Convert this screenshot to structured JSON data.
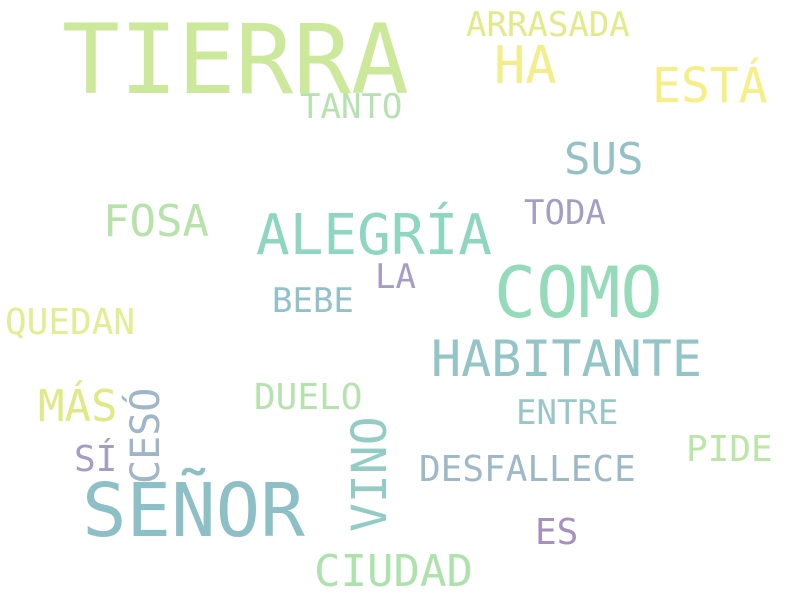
{
  "words": [
    {
      "text": "TIERRA",
      "color": "#cce89a"
    },
    {
      "text": "ARRASADA",
      "color": "#e2ea8a"
    },
    {
      "text": "HA",
      "color": "#f4ee8a"
    },
    {
      "text": "ESTÁ",
      "color": "#f6ef86"
    },
    {
      "text": "TANTO",
      "color": "#b5e2ae"
    },
    {
      "text": "SUS",
      "color": "#93c1c6"
    },
    {
      "text": "TODA",
      "color": "#a39fc4"
    },
    {
      "text": "FOSA",
      "color": "#b7e2a9"
    },
    {
      "text": "ALEGRÍA",
      "color": "#8ed6c0"
    },
    {
      "text": "COMO",
      "color": "#95dbba"
    },
    {
      "text": "LA",
      "color": "#a69cc4"
    },
    {
      "text": "BEBE",
      "color": "#93c1c9"
    },
    {
      "text": "QUEDAN",
      "color": "#e3ed92"
    },
    {
      "text": "HABITANTE",
      "color": "#93c4c6"
    },
    {
      "text": "MÁS",
      "color": "#dfea86"
    },
    {
      "text": "CESÓ",
      "color": "#9fb5c8"
    },
    {
      "text": "DUELO",
      "color": "#b6e2ad"
    },
    {
      "text": "ENTRE",
      "color": "#99c6c6"
    },
    {
      "text": "PIDE",
      "color": "#bde6a6"
    },
    {
      "text": "SÍ",
      "color": "#a59dc4"
    },
    {
      "text": "VINO",
      "color": "#93cbc5"
    },
    {
      "text": "DESFALLECE",
      "color": "#9fb8c8"
    },
    {
      "text": "SEÑOR",
      "color": "#8cbfc6"
    },
    {
      "text": "ES",
      "color": "#a78fbe"
    },
    {
      "text": "CIUDAD",
      "color": "#aee2ac"
    }
  ]
}
